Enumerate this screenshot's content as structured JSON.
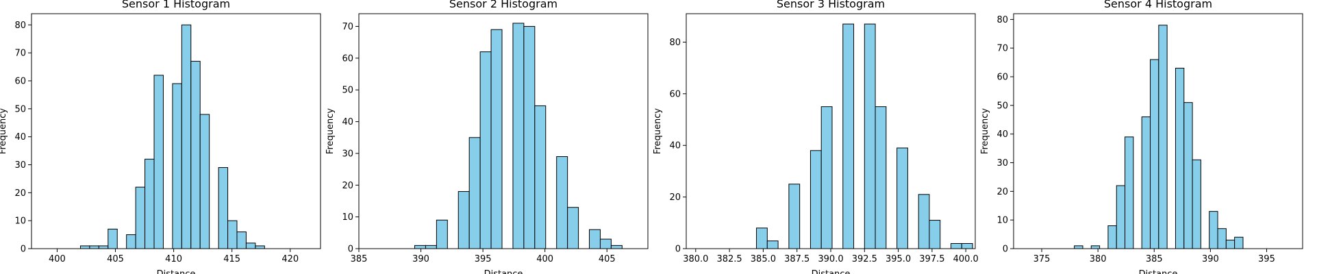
{
  "colors": {
    "bar_fill": "#87ceeb",
    "bar_edge": "#000000"
  },
  "chart_data": [
    {
      "type": "bar",
      "title": "Sensor 1 Histogram",
      "xlabel": "Distance",
      "ylabel": "Frequency",
      "xlim": [
        397.8,
        422.6
      ],
      "ylim": [
        0,
        84
      ],
      "xticks": [
        400,
        405,
        410,
        415,
        420
      ],
      "xtick_labels": [
        "400",
        "405",
        "410",
        "415",
        "420"
      ],
      "yticks": [
        0,
        10,
        20,
        30,
        40,
        50,
        60,
        70,
        80
      ],
      "ytick_labels": [
        "0",
        "10",
        "20",
        "30",
        "40",
        "50",
        "60",
        "70",
        "80"
      ],
      "bin_width": 0.79,
      "bins": [
        {
          "x": 402.0,
          "value": 1
        },
        {
          "x": 402.79,
          "value": 1
        },
        {
          "x": 403.58,
          "value": 1
        },
        {
          "x": 404.37,
          "value": 7
        },
        {
          "x": 405.16,
          "value": 0
        },
        {
          "x": 405.95,
          "value": 5
        },
        {
          "x": 406.74,
          "value": 22
        },
        {
          "x": 407.53,
          "value": 32
        },
        {
          "x": 408.32,
          "value": 62
        },
        {
          "x": 409.11,
          "value": 0
        },
        {
          "x": 409.9,
          "value": 59
        },
        {
          "x": 410.69,
          "value": 80
        },
        {
          "x": 411.48,
          "value": 67
        },
        {
          "x": 412.27,
          "value": 48
        },
        {
          "x": 413.06,
          "value": 0
        },
        {
          "x": 413.85,
          "value": 29
        },
        {
          "x": 414.64,
          "value": 10
        },
        {
          "x": 415.43,
          "value": 6
        },
        {
          "x": 416.22,
          "value": 2
        },
        {
          "x": 417.01,
          "value": 1
        }
      ]
    },
    {
      "type": "bar",
      "title": "Sensor 2 Histogram",
      "xlabel": "Distance",
      "ylabel": "Frequency",
      "xlim": [
        385,
        408.3
      ],
      "ylim": [
        0,
        74
      ],
      "xticks": [
        385,
        390,
        395,
        400,
        405
      ],
      "xtick_labels": [
        "385",
        "390",
        "395",
        "400",
        "405"
      ],
      "yticks": [
        0,
        10,
        20,
        30,
        40,
        50,
        60,
        70
      ],
      "ytick_labels": [
        "0",
        "10",
        "20",
        "30",
        "40",
        "50",
        "60",
        "70"
      ],
      "bin_width": 0.88,
      "bins": [
        {
          "x": 389.5,
          "value": 1
        },
        {
          "x": 390.38,
          "value": 1
        },
        {
          "x": 391.26,
          "value": 9
        },
        {
          "x": 392.14,
          "value": 0
        },
        {
          "x": 393.02,
          "value": 18
        },
        {
          "x": 393.9,
          "value": 35
        },
        {
          "x": 394.78,
          "value": 62
        },
        {
          "x": 395.66,
          "value": 69
        },
        {
          "x": 396.54,
          "value": 0
        },
        {
          "x": 397.42,
          "value": 71
        },
        {
          "x": 398.3,
          "value": 70
        },
        {
          "x": 399.18,
          "value": 45
        },
        {
          "x": 400.06,
          "value": 0
        },
        {
          "x": 400.94,
          "value": 29
        },
        {
          "x": 401.82,
          "value": 13
        },
        {
          "x": 402.7,
          "value": 0
        },
        {
          "x": 403.58,
          "value": 6
        },
        {
          "x": 404.46,
          "value": 3
        },
        {
          "x": 405.34,
          "value": 1
        }
      ]
    },
    {
      "type": "bar",
      "title": "Sensor 3 Histogram",
      "xlabel": "Distance",
      "ylabel": "Frequency",
      "xlim": [
        379.3,
        400.7
      ],
      "ylim": [
        0,
        91
      ],
      "xticks": [
        380.0,
        382.5,
        385.0,
        387.5,
        390.0,
        392.5,
        395.0,
        397.5,
        400.0
      ],
      "xtick_labels": [
        "380.0",
        "382.5",
        "385.0",
        "387.5",
        "390.0",
        "392.5",
        "395.0",
        "397.5",
        "400.0"
      ],
      "yticks": [
        0,
        20,
        40,
        60,
        80
      ],
      "ytick_labels": [
        "0",
        "20",
        "40",
        "60",
        "80"
      ],
      "bin_width": 0.8,
      "bins": [
        {
          "x": 384.5,
          "value": 8
        },
        {
          "x": 385.3,
          "value": 3
        },
        {
          "x": 386.1,
          "value": 0
        },
        {
          "x": 386.9,
          "value": 25
        },
        {
          "x": 387.7,
          "value": 0
        },
        {
          "x": 388.5,
          "value": 38
        },
        {
          "x": 389.3,
          "value": 55
        },
        {
          "x": 390.1,
          "value": 0
        },
        {
          "x": 390.9,
          "value": 87
        },
        {
          "x": 391.7,
          "value": 0
        },
        {
          "x": 392.5,
          "value": 87
        },
        {
          "x": 393.3,
          "value": 55
        },
        {
          "x": 394.1,
          "value": 0
        },
        {
          "x": 394.9,
          "value": 39
        },
        {
          "x": 395.7,
          "value": 0
        },
        {
          "x": 396.5,
          "value": 21
        },
        {
          "x": 397.3,
          "value": 11
        },
        {
          "x": 398.1,
          "value": 0
        },
        {
          "x": 398.9,
          "value": 2
        },
        {
          "x": 399.7,
          "value": 2
        }
      ]
    },
    {
      "type": "bar",
      "title": "Sensor 4 Histogram",
      "xlabel": "Distance",
      "ylabel": "Frequency",
      "xlim": [
        372.5,
        398.2
      ],
      "ylim": [
        0,
        82
      ],
      "xticks": [
        375,
        380,
        385,
        390,
        395
      ],
      "xtick_labels": [
        "375",
        "380",
        "385",
        "390",
        "395"
      ],
      "yticks": [
        0,
        10,
        20,
        30,
        40,
        50,
        60,
        70,
        80
      ],
      "ytick_labels": [
        "0",
        "10",
        "20",
        "30",
        "40",
        "50",
        "60",
        "70",
        "80"
      ],
      "bin_width": 0.75,
      "bins": [
        {
          "x": 377.9,
          "value": 1
        },
        {
          "x": 378.65,
          "value": 0
        },
        {
          "x": 379.4,
          "value": 1
        },
        {
          "x": 380.15,
          "value": 0
        },
        {
          "x": 380.9,
          "value": 8
        },
        {
          "x": 381.65,
          "value": 22
        },
        {
          "x": 382.4,
          "value": 39
        },
        {
          "x": 383.15,
          "value": 0
        },
        {
          "x": 383.9,
          "value": 46
        },
        {
          "x": 384.65,
          "value": 66
        },
        {
          "x": 385.4,
          "value": 78
        },
        {
          "x": 386.15,
          "value": 0
        },
        {
          "x": 386.9,
          "value": 63
        },
        {
          "x": 387.65,
          "value": 51
        },
        {
          "x": 388.4,
          "value": 31
        },
        {
          "x": 389.15,
          "value": 0
        },
        {
          "x": 389.9,
          "value": 13
        },
        {
          "x": 390.65,
          "value": 7
        },
        {
          "x": 391.4,
          "value": 3
        },
        {
          "x": 392.15,
          "value": 4
        }
      ]
    }
  ]
}
